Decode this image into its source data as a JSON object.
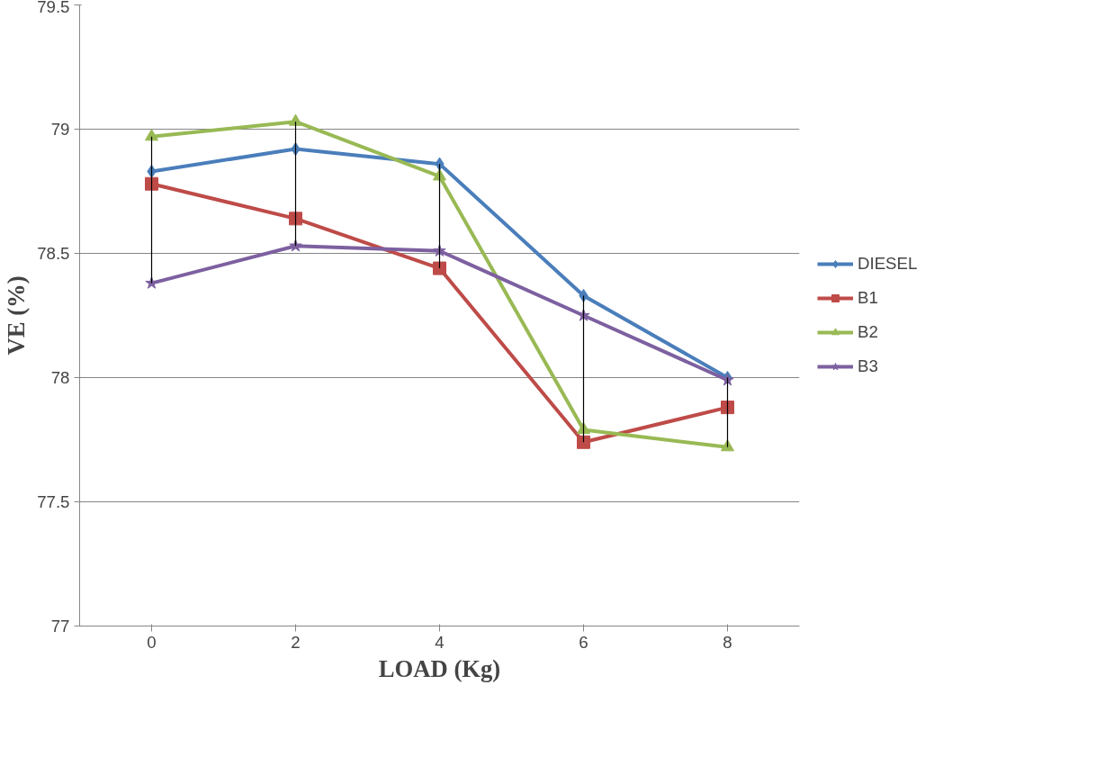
{
  "chart_data": {
    "type": "line",
    "xlabel": "LOAD (Kg)",
    "ylabel": "VE (%)",
    "categories": [
      "0",
      "2",
      "4",
      "6",
      "8"
    ],
    "series": [
      {
        "name": "DIESEL",
        "color": "#4a7ebb",
        "marker": "diamond",
        "values": [
          78.83,
          78.92,
          78.86,
          78.33,
          78.0
        ],
        "errors": [
          [
            78.38,
            78.97
          ],
          [
            78.53,
            79.03
          ],
          [
            78.44,
            78.86
          ],
          [
            77.74,
            78.33
          ],
          [
            77.72,
            78.0
          ]
        ]
      },
      {
        "name": "B1",
        "color": "#be4b48",
        "marker": "square",
        "values": [
          78.78,
          78.64,
          78.44,
          77.74,
          77.88
        ]
      },
      {
        "name": "B2",
        "color": "#98b954",
        "marker": "triangle",
        "values": [
          78.97,
          79.03,
          78.81,
          77.79,
          77.72
        ]
      },
      {
        "name": "B3",
        "color": "#7d60a0",
        "marker": "star",
        "values": [
          78.38,
          78.53,
          78.51,
          78.25,
          77.99
        ]
      }
    ],
    "ylim": [
      77,
      79.5
    ],
    "yticks": [
      77,
      {
        "value": 77.5,
        "label": "77.5"
      },
      78,
      {
        "value": 78.5,
        "label": "78.5"
      },
      79,
      {
        "value": 79.5,
        "label": "79.5"
      }
    ],
    "grid": "y",
    "legend": "right"
  }
}
